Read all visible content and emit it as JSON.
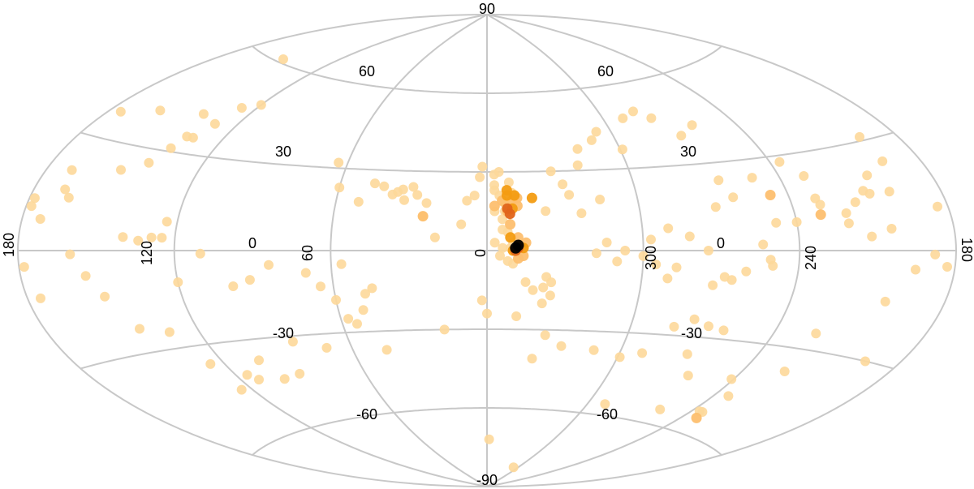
{
  "map": {
    "projection": "aitoff",
    "lat_labels": {
      "north_60": "60",
      "north_30": "30",
      "south_30": "-30",
      "south_60": "-60",
      "pole_north": "90",
      "pole_south": "-90"
    },
    "lon_labels": {
      "left_edge": "180",
      "l120": "120",
      "l60": "60",
      "center": "0",
      "l300": "300",
      "l240": "240",
      "right_edge": "180"
    },
    "equator_labels": {
      "left": "0",
      "right": "0"
    },
    "palette": {
      "grid": "#c8c8c8",
      "low": "#fdd89a",
      "mid": "#fdbf6f",
      "high": "#f39c12",
      "higher": "#e0641a",
      "peak": "#000000"
    }
  },
  "chart_data": {
    "type": "scatter",
    "coordinate_system": "galactic (l, b) in degrees",
    "points": [
      [
        150,
        61,
        1
      ],
      [
        175,
        37,
        1
      ],
      [
        160,
        40,
        1
      ],
      [
        140,
        42,
        1
      ],
      [
        165,
        14,
        1
      ],
      [
        178,
        13,
        1
      ],
      [
        178,
        11,
        1
      ],
      [
        168,
        16,
        1
      ],
      [
        170,
        21,
        1
      ],
      [
        173,
        8,
        1
      ],
      [
        151,
        23,
        1
      ],
      [
        142,
        26,
        1
      ],
      [
        138,
        31,
        1
      ],
      [
        136,
        35,
        1
      ],
      [
        133,
        35,
        1
      ],
      [
        130,
        40,
        1
      ],
      [
        127,
        46,
        1
      ],
      [
        120,
        48,
        1
      ],
      [
        124,
        9,
        1
      ],
      [
        125,
        4,
        1
      ],
      [
        129,
        4,
        1
      ],
      [
        134,
        3,
        1
      ],
      [
        140,
        4,
        1
      ],
      [
        160,
        -1,
        1
      ],
      [
        178,
        -4,
        1
      ],
      [
        175,
        -12,
        1
      ],
      [
        155,
        -7,
        1
      ],
      [
        150,
        -13,
        1
      ],
      [
        143,
        -23,
        1
      ],
      [
        132,
        -25,
        1
      ],
      [
        126,
        -36,
        1
      ],
      [
        125,
        -45,
        1
      ],
      [
        112,
        -43,
        1
      ],
      [
        115,
        -41,
        1
      ],
      [
        100,
        -44,
        1
      ],
      [
        104,
        -37,
        1
      ],
      [
        91,
        -43,
        1
      ],
      [
        84,
        -32,
        1
      ],
      [
        71,
        -35,
        1
      ],
      [
        45,
        -37,
        1
      ],
      [
        18,
        -30,
        1
      ],
      [
        -21,
        -41,
        1
      ],
      [
        -2,
        -72,
        1
      ],
      [
        -52,
        -82,
        1
      ],
      [
        -70,
        -56,
        1
      ],
      [
        -90,
        -36,
        1
      ],
      [
        -70,
        -37,
        1
      ],
      [
        -61,
        -39,
        1
      ],
      [
        -48,
        -37,
        1
      ],
      [
        -33,
        -36,
        1
      ],
      [
        -25,
        -32,
        1
      ],
      [
        -22,
        -20,
        1
      ],
      [
        -12,
        -25,
        1
      ],
      [
        2,
        -19,
        1
      ],
      [
        0,
        -24,
        1
      ],
      [
        -18,
        -15,
        1
      ],
      [
        -15,
        -12,
        1
      ],
      [
        -23,
        -10,
        1
      ],
      [
        -22,
        -14,
        1
      ],
      [
        -25,
        -17,
        1
      ],
      [
        -25,
        -12,
        1
      ],
      [
        -10,
        -5,
        1
      ],
      [
        -8,
        -4,
        1
      ],
      [
        -5,
        -2,
        1
      ],
      [
        -3,
        3,
        1
      ],
      [
        -6,
        1,
        1
      ],
      [
        -9,
        1,
        1
      ],
      [
        -10,
        3,
        1
      ],
      [
        -8,
        7,
        1
      ],
      [
        -6,
        8,
        1
      ],
      [
        -6,
        12,
        1
      ],
      [
        -7,
        18,
        1
      ],
      [
        -5,
        21,
        1
      ],
      [
        -3,
        23,
        1
      ],
      [
        -3,
        25,
        1
      ],
      [
        -5,
        30,
        1
      ],
      [
        -3,
        29,
        1
      ],
      [
        -9,
        26,
        1
      ],
      [
        -10,
        22,
        1
      ],
      [
        -7,
        15,
        1
      ],
      [
        -3,
        15,
        1
      ],
      [
        5,
        21,
        1
      ],
      [
        3,
        28,
        1
      ],
      [
        2,
        32,
        1
      ],
      [
        8,
        19,
        1
      ],
      [
        10,
        10,
        1
      ],
      [
        20,
        5,
        1
      ],
      [
        25,
        13,
        1
      ],
      [
        24,
        18,
        1
      ],
      [
        28,
        21,
        1
      ],
      [
        30,
        24,
        1
      ],
      [
        33,
        19,
        1
      ],
      [
        36,
        22,
        1
      ],
      [
        38,
        21,
        1
      ],
      [
        34,
        23,
        1
      ],
      [
        42,
        24,
        1
      ],
      [
        46,
        25,
        1
      ],
      [
        51,
        18,
        1
      ],
      [
        60,
        23,
        1
      ],
      [
        64,
        32,
        1
      ],
      [
        65,
        -13,
        1
      ],
      [
        60,
        -18,
        1
      ],
      [
        57,
        -25,
        1
      ],
      [
        54,
        -27,
        1
      ],
      [
        50,
        -22,
        1
      ],
      [
        48,
        -16,
        1
      ],
      [
        45,
        -14,
        1
      ],
      [
        56,
        -5,
        1
      ],
      [
        70,
        -8,
        1
      ],
      [
        84,
        -5,
        1
      ],
      [
        92,
        -10,
        1
      ],
      [
        99,
        -12,
        1
      ],
      [
        110,
        -1,
        1
      ],
      [
        120,
        -10,
        1
      ],
      [
        -42,
        -1,
        1
      ],
      [
        -50,
        -4,
        1
      ],
      [
        -60,
        -2,
        1
      ],
      [
        -65,
        -5,
        1
      ],
      [
        -70,
        -10,
        1
      ],
      [
        -73,
        -6,
        1
      ],
      [
        -70,
        8,
        1
      ],
      [
        -78,
        5,
        1
      ],
      [
        -63,
        4,
        1
      ],
      [
        -53,
        0,
        1
      ],
      [
        -46,
        3,
        1
      ],
      [
        -45,
        19,
        1
      ],
      [
        -37,
        14,
        1
      ],
      [
        -33,
        21,
        1
      ],
      [
        -23,
        15,
        1
      ],
      [
        -31,
        25,
        1
      ],
      [
        -27,
        30,
        1
      ],
      [
        -39,
        32,
        1
      ],
      [
        -41,
        38,
        1
      ],
      [
        -49,
        41,
        1
      ],
      [
        -53,
        44,
        1
      ],
      [
        -61,
        37,
        1
      ],
      [
        -70,
        48,
        1
      ],
      [
        -78,
        50,
        1
      ],
      [
        -84,
        47,
        1
      ],
      [
        -91,
        40,
        1
      ],
      [
        -100,
        43,
        1
      ],
      [
        -109,
        24,
        1
      ],
      [
        -124,
        28,
        1
      ],
      [
        -130,
        23,
        1
      ],
      [
        -130,
        16,
        1
      ],
      [
        -131,
        14,
        1
      ],
      [
        -140,
        8,
        1
      ],
      [
        -148,
        4,
        1
      ],
      [
        -156,
        6,
        1
      ],
      [
        -165,
        -5,
        1
      ],
      [
        -157,
        -14,
        1
      ],
      [
        -166,
        -30,
        1
      ],
      [
        -119,
        -42,
        1
      ],
      [
        -103,
        -55,
        1
      ],
      [
        -127,
        -47,
        1
      ],
      [
        -98,
        -43,
        1
      ],
      [
        -137,
        -25,
        1
      ],
      [
        -109,
        -3,
        1
      ],
      [
        -106,
        2,
        1
      ],
      [
        -85,
        0,
        1
      ],
      [
        -95,
        -10,
        1
      ],
      [
        -88,
        -12,
        1
      ],
      [
        -165,
        24,
        1
      ],
      [
        -160,
        16,
        1
      ],
      [
        -155,
        21,
        1
      ],
      [
        -165,
        31,
        1
      ],
      [
        -176,
        11,
        1
      ],
      [
        -177,
        -4,
        1
      ],
      [
        -172,
        -1,
        1
      ],
      [
        -152,
        16,
        1
      ],
      [
        -145,
        14,
        1
      ],
      [
        -140,
        11,
        1
      ],
      [
        -120,
        9,
        1
      ],
      [
        -112,
        9,
        1
      ],
      [
        -150,
        17,
        1
      ],
      [
        -92,
        -9,
        1
      ],
      [
        -100,
        -7,
        1
      ],
      [
        -110,
        -5,
        1
      ],
      [
        -85,
        -24,
        1
      ],
      [
        -78,
        -27,
        1
      ],
      [
        -99,
        -27,
        1
      ],
      [
        -138,
        -37,
        1
      ],
      [
        -92,
        -26,
        1
      ],
      [
        -126,
        -53,
        1
      ],
      [
        -124,
        -53,
        1
      ],
      [
        -98,
        18,
        1
      ],
      [
        -90,
        15,
        1
      ],
      [
        -95,
        24,
        1
      ],
      [
        -113,
        18,
        2
      ],
      [
        -130,
        11,
        2
      ],
      [
        -128,
        -55,
        2
      ],
      [
        -10,
        19,
        2
      ],
      [
        -12,
        20,
        2
      ],
      [
        -12,
        17,
        2
      ],
      [
        -6,
        19,
        2
      ],
      [
        -3,
        17,
        2
      ],
      [
        -8,
        15,
        2
      ],
      [
        -9,
        10,
        2
      ],
      [
        -12,
        5,
        2
      ],
      [
        -15,
        3,
        2
      ],
      [
        -14,
        -2,
        2
      ],
      [
        -12,
        -3,
        2
      ],
      [
        25,
        13,
        2
      ],
      [
        -8,
        23,
        3
      ],
      [
        -11,
        21,
        3
      ],
      [
        -8,
        21,
        3
      ],
      [
        -18,
        20,
        3
      ],
      [
        -10,
        16,
        3
      ],
      [
        -9,
        5,
        3
      ],
      [
        -12,
        2,
        3
      ],
      [
        -14,
        1,
        3
      ],
      [
        -10,
        0,
        3
      ],
      [
        -9,
        14,
        4
      ],
      [
        -8,
        16,
        4
      ],
      [
        -12,
        1,
        4
      ],
      [
        -11,
        0,
        4
      ],
      [
        -11,
        1,
        5
      ],
      [
        -12,
        2,
        5
      ]
    ]
  }
}
